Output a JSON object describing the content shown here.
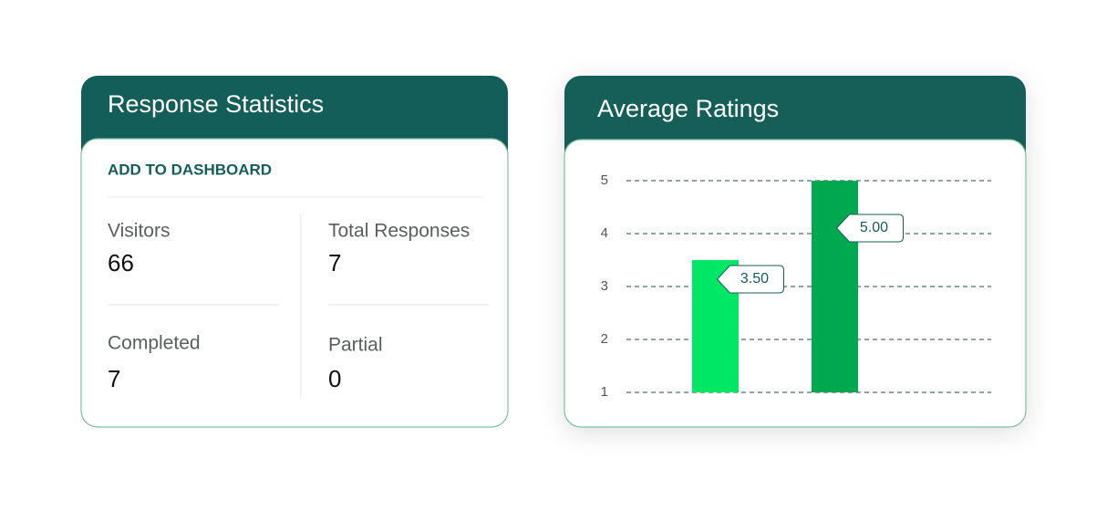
{
  "stats": {
    "title": "Response Statistics",
    "action": "ADD TO DASHBOARD",
    "items": [
      {
        "label": "Visitors",
        "value": 66
      },
      {
        "label": "Total Responses",
        "value": 7
      },
      {
        "label": "Completed",
        "value": 7
      },
      {
        "label": "Partial",
        "value": 0
      }
    ]
  },
  "chart_data": {
    "type": "bar",
    "title": "Average Ratings",
    "categories": [
      null,
      null
    ],
    "values": [
      3.5,
      5
    ],
    "value_labels": [
      "3.50",
      "5.00"
    ],
    "colors": [
      "#00e765",
      "#00a94f"
    ],
    "ylim": [
      1,
      5
    ],
    "yticks": [
      1,
      2,
      3,
      4,
      5
    ],
    "grid": true
  }
}
